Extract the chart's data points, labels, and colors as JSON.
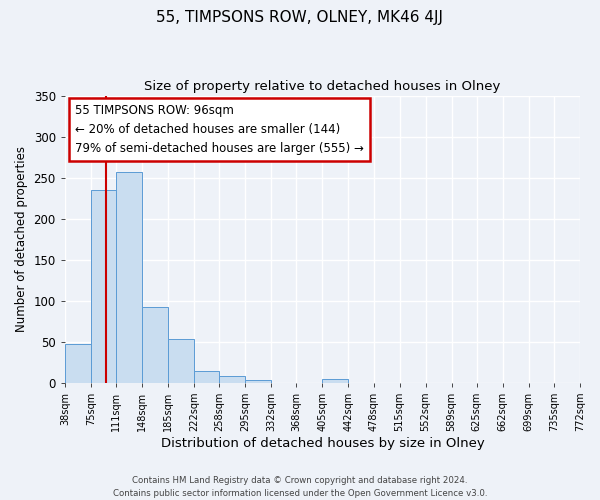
{
  "title": "55, TIMPSONS ROW, OLNEY, MK46 4JJ",
  "subtitle": "Size of property relative to detached houses in Olney",
  "xlabel": "Distribution of detached houses by size in Olney",
  "ylabel": "Number of detached properties",
  "bin_labels": [
    "38sqm",
    "75sqm",
    "111sqm",
    "148sqm",
    "185sqm",
    "222sqm",
    "258sqm",
    "295sqm",
    "332sqm",
    "368sqm",
    "405sqm",
    "442sqm",
    "478sqm",
    "515sqm",
    "552sqm",
    "589sqm",
    "625sqm",
    "662sqm",
    "699sqm",
    "735sqm",
    "772sqm"
  ],
  "bar_heights": [
    48,
    235,
    257,
    93,
    54,
    14,
    9,
    4,
    0,
    0,
    5,
    0,
    0,
    0,
    0,
    0,
    0,
    0,
    0,
    0,
    3
  ],
  "bar_color": "#c9ddf0",
  "bar_edge_color": "#5b9bd5",
  "property_line_x": 96,
  "bin_edges_sqm": [
    38,
    75,
    111,
    148,
    185,
    222,
    258,
    295,
    332,
    368,
    405,
    442,
    478,
    515,
    552,
    589,
    625,
    662,
    699,
    735,
    772
  ],
  "annotation_lines": [
    "55 TIMPSONS ROW: 96sqm",
    "← 20% of detached houses are smaller (144)",
    "79% of semi-detached houses are larger (555) →"
  ],
  "annotation_fontsize": 8.5,
  "ylim": [
    0,
    350
  ],
  "yticks": [
    0,
    50,
    100,
    150,
    200,
    250,
    300,
    350
  ],
  "title_fontsize": 11,
  "subtitle_fontsize": 9.5,
  "xlabel_fontsize": 9.5,
  "ylabel_fontsize": 8.5,
  "footer_line1": "Contains HM Land Registry data © Crown copyright and database right 2024.",
  "footer_line2": "Contains public sector information licensed under the Open Government Licence v3.0.",
  "background_color": "#eef2f8",
  "plot_bg_color": "#eef2f8",
  "grid_color": "#ffffff",
  "red_line_color": "#cc0000",
  "annotation_box_color": "#ffffff",
  "annotation_box_edge_color": "#cc0000"
}
